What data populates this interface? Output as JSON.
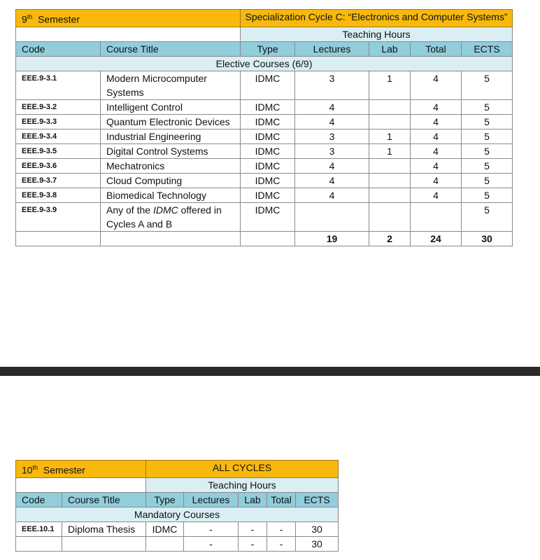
{
  "table9": {
    "semester_num": "9",
    "semester_sup": "th",
    "semester_label": "Semester",
    "cycle": "Specialization Cycle C: “Electronics and Computer Systems”",
    "teaching_hours": "Teaching Hours",
    "headers": [
      "Code",
      "Course Title",
      "Type",
      "Lectures",
      "Lab",
      "Total",
      "ECTS"
    ],
    "section": "Elective Courses (6/9)",
    "rows": [
      [
        "EEE.9-3.1",
        "Modern Microcomputer Systems",
        "IDMC",
        "3",
        "1",
        "4",
        "5"
      ],
      [
        "EEE.9-3.2",
        "Intelligent Control",
        "IDMC",
        "4",
        "",
        "4",
        "5"
      ],
      [
        "EEE.9-3.3",
        "Quantum Electronic Devices",
        "IDMC",
        "4",
        "",
        "4",
        "5"
      ],
      [
        "EEE.9-3.4",
        "Industrial Engineering",
        "IDMC",
        "3",
        "1",
        "4",
        "5"
      ],
      [
        "EEE.9-3.5",
        "Digital Control Systems",
        "IDMC",
        "3",
        "1",
        "4",
        "5"
      ],
      [
        "EEE.9-3.6",
        "Mechatronics",
        "IDMC",
        "4",
        "",
        "4",
        "5"
      ],
      [
        "EEE.9-3.7",
        "Cloud Computing",
        "IDMC",
        "4",
        "",
        "4",
        "5"
      ],
      [
        "EEE.9-3.8",
        "Biomedical Technology",
        "IDMC",
        "4",
        "",
        "4",
        "5"
      ],
      [
        "EEE.9-3.9",
        "Any of the IDMC offered in Cycles A and B",
        "IDMC",
        "",
        "",
        "",
        "5"
      ]
    ],
    "totals": [
      "",
      "",
      "",
      "19",
      "2",
      "24",
      "30"
    ]
  },
  "table10": {
    "semester_num": "10",
    "semester_sup": "th",
    "semester_label": "Semester",
    "cycle": "ALL CYCLES",
    "teaching_hours": "Teaching Hours",
    "headers": [
      "Code",
      "Course Title",
      "Type",
      "Lectures",
      "Lab",
      "Total",
      "ECTS"
    ],
    "section": "Mandatory Courses",
    "rows": [
      [
        "EEE.10.1",
        "Diploma Thesis",
        "IDMC",
        "-",
        "-",
        "-",
        "30"
      ]
    ],
    "totals": [
      "",
      "",
      "",
      "-",
      "-",
      "-",
      "30"
    ]
  },
  "colors": {
    "semester_bg": "#f8b90c",
    "header_bg": "#92cddc",
    "light_bg": "#daeef3"
  }
}
